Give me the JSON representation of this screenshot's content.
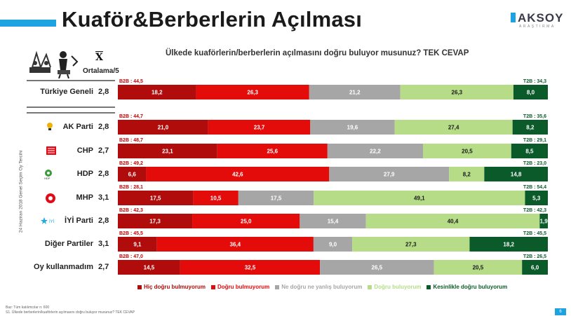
{
  "title": "Kuaför&Berberlerin Açılması",
  "logo": {
    "name": "AKSOY",
    "sub": "ARAŞTIRMA"
  },
  "question": "Ülkede kuaförlerin/berberlerin açılmasını doğru buluyor musunuz? TEK CEVAP",
  "avg_symbol": "X",
  "avg_header": "Ortalama/5",
  "vertical_label": "24 Haziran 2018 Genel Seçim Oy Tercihi",
  "colors": {
    "hic": "#b00c0c",
    "dogru_bulmuyorum": "#e40b0b",
    "ne": "#a6a6a6",
    "dogru": "#b6dc88",
    "kesinlikle": "#0b5a2a"
  },
  "chart_data": {
    "type": "bar",
    "stacked": true,
    "orientation": "horizontal",
    "categories": [
      "Türkiye Geneli",
      "AK Parti",
      "CHP",
      "HDP",
      "MHP",
      "İYİ Parti",
      "Diğer Partiler",
      "Oy kullanmadım"
    ],
    "averages": [
      "2,8",
      "2,8",
      "2,7",
      "2,8",
      "3,1",
      "2,8",
      "3,1",
      "2,7"
    ],
    "b2b": [
      "B2B : 44,5",
      "B2B : 44,7",
      "B2B : 48,7",
      "B2B : 49,2",
      "B2B : 28,1",
      "B2B : 42,3",
      "B2B : 45,5",
      "B2B : 47,0"
    ],
    "t2b": [
      "T2B : 34,3",
      "T2B : 35,6",
      "T2B : 29,1",
      "T2B : 23,0",
      "T2B : 54,4",
      "T2B : 42,3",
      "T2B : 45,5",
      "T2B : 26,5"
    ],
    "series": [
      {
        "name": "Hiç doğru bulmuyorum",
        "values": [
          18.2,
          21.0,
          23.1,
          6.6,
          17.5,
          17.3,
          9.1,
          14.5
        ],
        "labels": [
          "18,2",
          "21,0",
          "23,1",
          "6,6",
          "17,5",
          "17,3",
          "9,1",
          "14,5"
        ]
      },
      {
        "name": "Doğru bulmuyorum",
        "values": [
          26.3,
          23.7,
          25.6,
          42.6,
          10.5,
          25.0,
          36.4,
          32.5
        ],
        "labels": [
          "26,3",
          "23,7",
          "25,6",
          "42,6",
          "10,5",
          "25,0",
          "36,4",
          "32,5"
        ]
      },
      {
        "name": "Ne doğru ne yanlış buluyorum",
        "values": [
          21.2,
          19.6,
          22.2,
          27.9,
          17.5,
          15.4,
          9.0,
          26.5
        ],
        "labels": [
          "21,2",
          "19,6",
          "22,2",
          "27,9",
          "17,5",
          "15,4",
          "9,0",
          "26,5"
        ]
      },
      {
        "name": "Doğru buluyorum",
        "values": [
          26.3,
          27.4,
          20.5,
          8.2,
          49.1,
          40.4,
          27.3,
          20.5
        ],
        "labels": [
          "26,3",
          "27,4",
          "20,5",
          "8,2",
          "49,1",
          "40,4",
          "27,3",
          "20,5"
        ]
      },
      {
        "name": "Kesinlikle doğru buluyorum",
        "values": [
          8.0,
          8.2,
          8.5,
          14.8,
          5.3,
          1.9,
          18.2,
          6.0
        ],
        "labels": [
          "8,0",
          "8,2",
          "8,5",
          "14,8",
          "5,3",
          "1,9",
          "18,2",
          "6,0"
        ]
      }
    ],
    "legend_position": "bottom"
  },
  "legend": [
    "Hiç doğru bulmuyorum",
    "Doğru bulmuyorum",
    "Ne doğru ne yanlış buluyorum",
    "Doğru buluyorum",
    "Kesinlikle doğru buluyorum"
  ],
  "footnote1": "Baz: Tüm katılımcılar n: 600",
  "footnote2": "S1. Ülkede berberlerin/kuaförlerin açılmasını doğru buluyor musunuz? TEK CEVAP",
  "page_number": "6",
  "party_icon_texts": {
    "hdp": "HDP",
    "iyi": "İYİ"
  }
}
